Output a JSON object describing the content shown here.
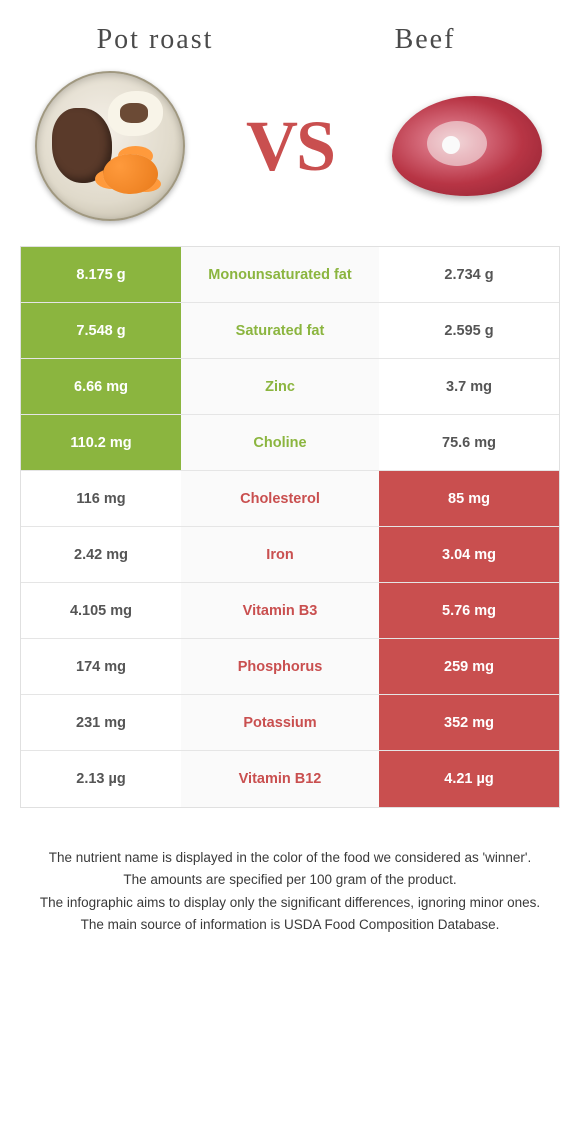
{
  "header": {
    "left_title": "Pot roast",
    "right_title": "Beef",
    "vs_label": "VS"
  },
  "colors": {
    "left_green": "#8bb53f",
    "right_red": "#c94f4f",
    "row_alt_bg": "#fafafa",
    "border": "#e0e0e0"
  },
  "rows": [
    {
      "left": "8.175 g",
      "label": "Monounsaturated fat",
      "right": "2.734 g",
      "winner": "left"
    },
    {
      "left": "7.548 g",
      "label": "Saturated fat",
      "right": "2.595 g",
      "winner": "left"
    },
    {
      "left": "6.66 mg",
      "label": "Zinc",
      "right": "3.7 mg",
      "winner": "left"
    },
    {
      "left": "110.2 mg",
      "label": "Choline",
      "right": "75.6 mg",
      "winner": "left"
    },
    {
      "left": "116 mg",
      "label": "Cholesterol",
      "right": "85 mg",
      "winner": "right"
    },
    {
      "left": "2.42 mg",
      "label": "Iron",
      "right": "3.04 mg",
      "winner": "right"
    },
    {
      "left": "4.105 mg",
      "label": "Vitamin B3",
      "right": "5.76 mg",
      "winner": "right"
    },
    {
      "left": "174 mg",
      "label": "Phosphorus",
      "right": "259 mg",
      "winner": "right"
    },
    {
      "left": "231 mg",
      "label": "Potassium",
      "right": "352 mg",
      "winner": "right"
    },
    {
      "left": "2.13 µg",
      "label": "Vitamin B12",
      "right": "4.21 µg",
      "winner": "right"
    }
  ],
  "footnotes": [
    "The nutrient name is displayed in the color of the food we considered as 'winner'.",
    "The amounts are specified per 100 gram of the product.",
    "The infographic aims to display only the significant differences, ignoring minor ones.",
    "The main source of information is USDA Food Composition Database."
  ]
}
